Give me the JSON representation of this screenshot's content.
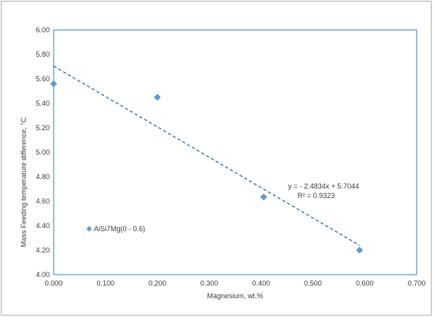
{
  "chart_data": {
    "type": "scatter",
    "xlabel": "Magnesium, wt.%",
    "ylabel": "Mass Feeding  temperature difference, °C",
    "xlim": [
      0,
      0.7
    ],
    "ylim": [
      4.0,
      6.0
    ],
    "x_ticks": [
      "0.000",
      "0.100",
      "0.200",
      "0.300",
      "0.400",
      "0.500",
      "0.600",
      "0.700"
    ],
    "y_ticks": [
      "4.00",
      "4.20",
      "4.40",
      "4.60",
      "4.80",
      "5.00",
      "5.20",
      "5.40",
      "5.60",
      "5.80",
      "6.00"
    ],
    "grid": false,
    "legend_position": "left",
    "series": [
      {
        "name": "AlSi7Mg(0 - 0.6)",
        "color": "#5b9bd5",
        "marker": "diamond",
        "x": [
          0.0,
          0.2,
          0.405,
          0.59
        ],
        "y": [
          5.56,
          5.45,
          4.635,
          4.2
        ]
      }
    ],
    "trendline": {
      "style": "dashed",
      "color": "#2e75b6",
      "slope": -2.4834,
      "intercept": 5.7044,
      "x_range": [
        0.0,
        0.59
      ],
      "equation": "y = - 2.4834x + 5.7044",
      "r_squared": "R² = 0.9323"
    },
    "colors": {
      "plot_border": "#5b9bd5",
      "marker": "#5b9bd5",
      "trendline": "#2e75b6"
    }
  }
}
